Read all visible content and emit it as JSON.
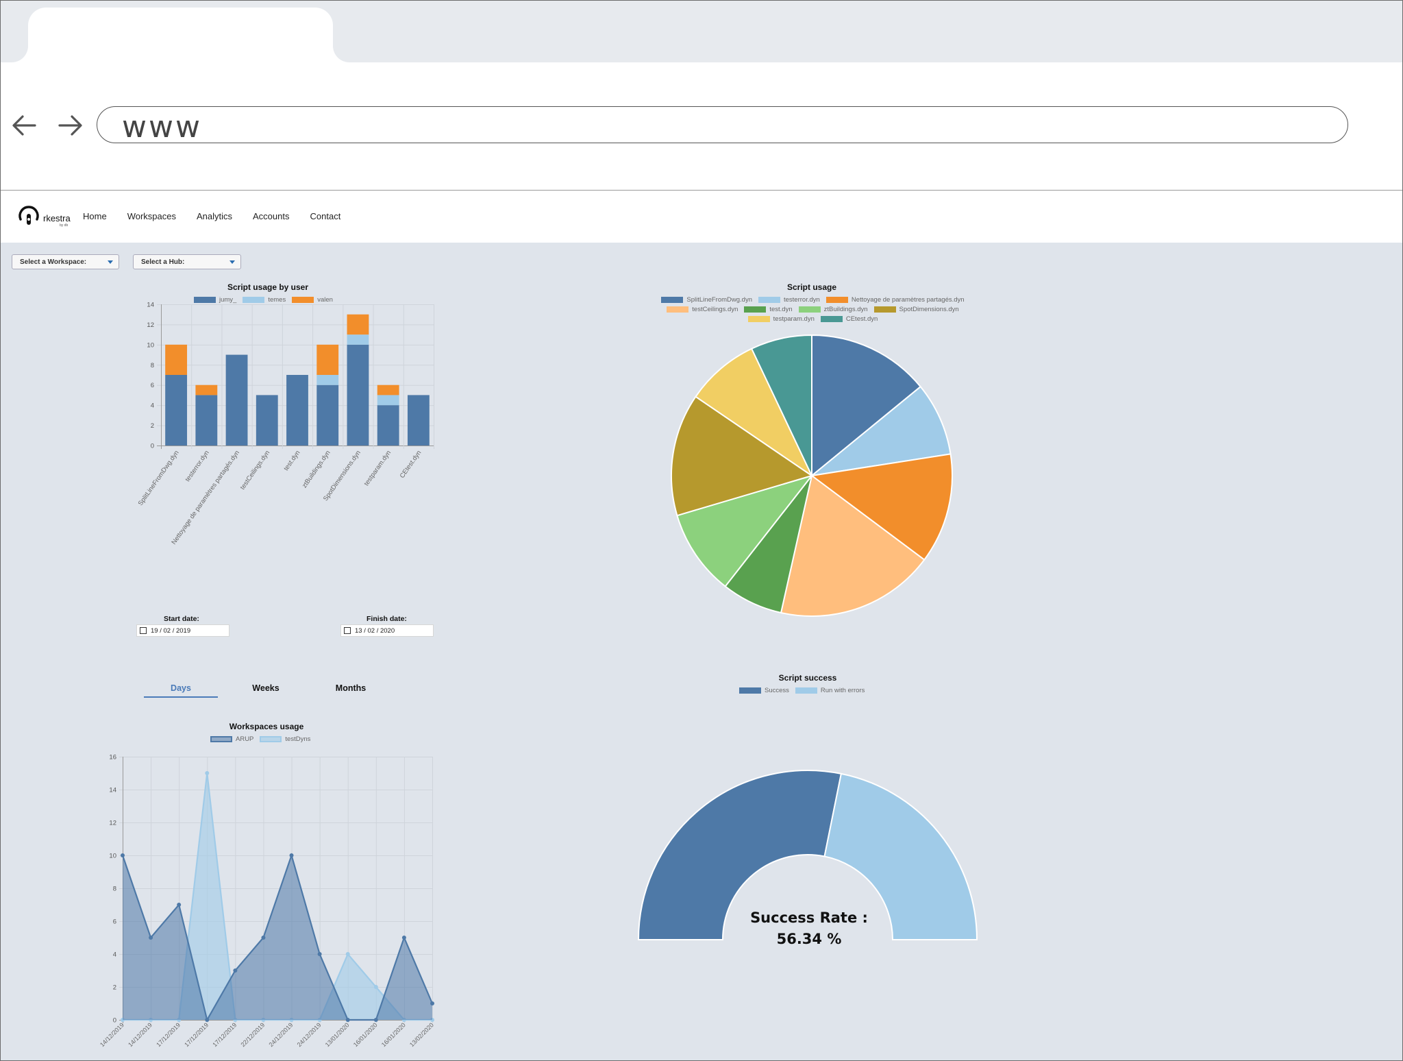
{
  "browser": {
    "url": "www"
  },
  "app": {
    "logo_text": "rkestra",
    "logo_sub": "by db",
    "nav": [
      "Home",
      "Workspaces",
      "Analytics",
      "Accounts",
      "Contact"
    ]
  },
  "filters": {
    "workspace_label": "Select a Workspace:",
    "hub_label": "Select a Hub:"
  },
  "date_range": {
    "start_label": "Start date:",
    "start_value": "19 / 02 / 2019",
    "finish_label": "Finish date:",
    "finish_value": "13 / 02 / 2020"
  },
  "period_tabs": {
    "days": "Days",
    "weeks": "Weeks",
    "months": "Months",
    "active": "Days"
  },
  "colors": {
    "blue_dark": "#4e79a7",
    "blue_light": "#a0cbe8",
    "orange": "#f28e2b",
    "peach": "#ffbe7d",
    "green": "#59a14f",
    "green_light": "#8cd17d",
    "olive": "#b6992d",
    "yellow": "#f1ce63",
    "teal": "#499894"
  },
  "chart_data": [
    {
      "id": "script_usage_by_user",
      "type": "bar",
      "stacked": true,
      "title": "Script usage by user",
      "categories": [
        "SplitLineFromDwg.dyn",
        "testerror.dyn",
        "Nettoyage de paramètres partagés.dyn",
        "testCeilings.dyn",
        "test.dyn",
        "ztBuildings.dyn",
        "SpotDimensions.dyn",
        "testparam.dyn",
        "CEtest.dyn"
      ],
      "series": [
        {
          "name": "jumy_",
          "color": "#4e79a7",
          "values": [
            7,
            5,
            9,
            5,
            7,
            6,
            10,
            4,
            5
          ]
        },
        {
          "name": "temes",
          "color": "#a0cbe8",
          "values": [
            0,
            0,
            0,
            0,
            0,
            1,
            1,
            1,
            0
          ]
        },
        {
          "name": "valen",
          "color": "#f28e2b",
          "values": [
            3,
            1,
            0,
            0,
            0,
            3,
            2,
            1,
            0
          ]
        }
      ],
      "ylim": [
        0,
        14
      ],
      "yticks": [
        0,
        2,
        4,
        6,
        8,
        10,
        12,
        14
      ],
      "legend": "top",
      "grid": true
    },
    {
      "id": "script_usage",
      "type": "pie",
      "title": "Script usage",
      "labels": [
        "SplitLineFromDwg.dyn",
        "testerror.dyn",
        "Nettoyage de paramètres partagés.dyn",
        "testCeilings.dyn",
        "test.dyn",
        "ztBuildings.dyn",
        "SpotDimensions.dyn",
        "testparam.dyn",
        "CEtest.dyn"
      ],
      "values": [
        10,
        6,
        9,
        13,
        5,
        7,
        10,
        6,
        5
      ],
      "colors": [
        "#4e79a7",
        "#a0cbe8",
        "#f28e2b",
        "#ffbe7d",
        "#59a14f",
        "#8cd17d",
        "#b6992d",
        "#f1ce63",
        "#499894"
      ],
      "legend": "top"
    },
    {
      "id": "workspaces_usage",
      "type": "area",
      "title": "Workspaces usage",
      "x": [
        "14/12/2019",
        "14/12/2019",
        "17/12/2019",
        "17/12/2019",
        "17/12/2019",
        "22/12/2019",
        "24/12/2019",
        "24/12/2019",
        "13/01/2020",
        "16/01/2020",
        "16/01/2020",
        "13/02/2020"
      ],
      "series": [
        {
          "name": "ARUP",
          "color": "#4e79a7",
          "values": [
            10,
            5,
            7,
            0,
            3,
            5,
            10,
            4,
            0,
            0,
            5,
            1
          ]
        },
        {
          "name": "testDyns",
          "color": "#a0cbe8",
          "values": [
            0,
            0,
            0,
            15,
            0,
            0,
            0,
            0,
            4,
            2,
            0,
            0
          ]
        }
      ],
      "ylim": [
        0,
        16
      ],
      "yticks": [
        0,
        2,
        4,
        6,
        8,
        10,
        12,
        14,
        16
      ],
      "legend": "top",
      "grid": true
    },
    {
      "id": "script_success",
      "type": "pie",
      "variant": "half-doughnut",
      "title": "Script success",
      "labels": [
        "Success",
        "Run with errors"
      ],
      "values": [
        56.34,
        43.66
      ],
      "colors": [
        "#4e79a7",
        "#a0cbe8"
      ],
      "center_label": "Success Rate :",
      "center_value": "56.34 %",
      "legend": "top"
    }
  ]
}
